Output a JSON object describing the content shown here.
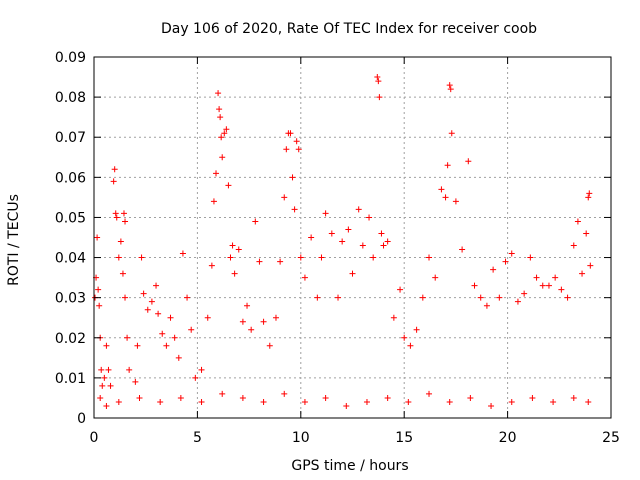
{
  "chart_data": {
    "type": "scatter",
    "title": "Day 106 of 2020, Rate Of TEC Index for receiver coob",
    "xlabel": "GPS time / hours",
    "ylabel": "ROTI / TECUs",
    "xlim": [
      0,
      25
    ],
    "ylim": [
      0,
      0.09
    ],
    "xticks": [
      0,
      5,
      10,
      15,
      20,
      25
    ],
    "xtick_labels": [
      "0",
      "5",
      "10",
      "15",
      "20",
      "25"
    ],
    "yticks": [
      0,
      0.01,
      0.02,
      0.03,
      0.04,
      0.05,
      0.06,
      0.07,
      0.08,
      0.09
    ],
    "ytick_labels": [
      "0",
      "0.01",
      "0.02",
      "0.03",
      "0.04",
      "0.05",
      "0.06",
      "0.07",
      "0.08",
      "0.09"
    ],
    "grid": true,
    "marker": "plus",
    "color": "#ff0000",
    "series": [
      {
        "points": [
          [
            0.05,
            0.03
          ],
          [
            0.1,
            0.035
          ],
          [
            0.15,
            0.045
          ],
          [
            0.2,
            0.032
          ],
          [
            0.25,
            0.028
          ],
          [
            0.3,
            0.02
          ],
          [
            0.35,
            0.012
          ],
          [
            0.4,
            0.008
          ],
          [
            0.5,
            0.01
          ],
          [
            0.6,
            0.018
          ],
          [
            0.7,
            0.012
          ],
          [
            0.8,
            0.008
          ],
          [
            0.95,
            0.059
          ],
          [
            1.0,
            0.062
          ],
          [
            1.05,
            0.051
          ],
          [
            1.1,
            0.05
          ],
          [
            1.2,
            0.04
          ],
          [
            1.3,
            0.044
          ],
          [
            1.4,
            0.036
          ],
          [
            1.5,
            0.03
          ],
          [
            1.45,
            0.051
          ],
          [
            1.5,
            0.049
          ],
          [
            1.6,
            0.02
          ],
          [
            1.7,
            0.012
          ],
          [
            2.0,
            0.009
          ],
          [
            2.1,
            0.018
          ],
          [
            2.3,
            0.04
          ],
          [
            2.4,
            0.031
          ],
          [
            2.6,
            0.027
          ],
          [
            2.8,
            0.029
          ],
          [
            3.0,
            0.033
          ],
          [
            3.1,
            0.026
          ],
          [
            3.3,
            0.021
          ],
          [
            3.5,
            0.018
          ],
          [
            3.7,
            0.025
          ],
          [
            3.9,
            0.02
          ],
          [
            4.1,
            0.015
          ],
          [
            4.3,
            0.041
          ],
          [
            4.5,
            0.03
          ],
          [
            4.7,
            0.022
          ],
          [
            4.9,
            0.01
          ],
          [
            5.2,
            0.012
          ],
          [
            5.5,
            0.025
          ],
          [
            5.7,
            0.038
          ],
          [
            5.8,
            0.054
          ],
          [
            5.9,
            0.061
          ],
          [
            6.0,
            0.081
          ],
          [
            6.05,
            0.077
          ],
          [
            6.1,
            0.075
          ],
          [
            6.15,
            0.07
          ],
          [
            6.2,
            0.065
          ],
          [
            6.3,
            0.071
          ],
          [
            6.4,
            0.072
          ],
          [
            6.5,
            0.058
          ],
          [
            6.6,
            0.04
          ],
          [
            6.7,
            0.043
          ],
          [
            6.8,
            0.036
          ],
          [
            7.0,
            0.042
          ],
          [
            7.2,
            0.024
          ],
          [
            7.4,
            0.028
          ],
          [
            7.6,
            0.022
          ],
          [
            7.8,
            0.049
          ],
          [
            8.0,
            0.039
          ],
          [
            8.2,
            0.024
          ],
          [
            8.5,
            0.018
          ],
          [
            8.8,
            0.025
          ],
          [
            9.0,
            0.039
          ],
          [
            9.2,
            0.055
          ],
          [
            9.3,
            0.067
          ],
          [
            9.4,
            0.071
          ],
          [
            9.5,
            0.071
          ],
          [
            9.6,
            0.06
          ],
          [
            9.7,
            0.052
          ],
          [
            9.8,
            0.069
          ],
          [
            9.9,
            0.067
          ],
          [
            10.0,
            0.04
          ],
          [
            10.2,
            0.035
          ],
          [
            10.5,
            0.045
          ],
          [
            10.8,
            0.03
          ],
          [
            11.0,
            0.04
          ],
          [
            11.2,
            0.051
          ],
          [
            11.5,
            0.046
          ],
          [
            11.8,
            0.03
          ],
          [
            12.0,
            0.044
          ],
          [
            12.3,
            0.047
          ],
          [
            12.5,
            0.036
          ],
          [
            12.8,
            0.052
          ],
          [
            13.0,
            0.043
          ],
          [
            13.3,
            0.05
          ],
          [
            13.5,
            0.04
          ],
          [
            13.7,
            0.085
          ],
          [
            13.75,
            0.084
          ],
          [
            13.8,
            0.08
          ],
          [
            13.9,
            0.046
          ],
          [
            14.0,
            0.043
          ],
          [
            14.2,
            0.044
          ],
          [
            14.5,
            0.025
          ],
          [
            14.8,
            0.032
          ],
          [
            15.0,
            0.02
          ],
          [
            15.3,
            0.018
          ],
          [
            15.6,
            0.022
          ],
          [
            15.9,
            0.03
          ],
          [
            16.2,
            0.04
          ],
          [
            16.5,
            0.035
          ],
          [
            16.8,
            0.057
          ],
          [
            17.0,
            0.055
          ],
          [
            17.1,
            0.063
          ],
          [
            17.2,
            0.083
          ],
          [
            17.25,
            0.082
          ],
          [
            17.3,
            0.071
          ],
          [
            17.5,
            0.054
          ],
          [
            17.8,
            0.042
          ],
          [
            18.1,
            0.064
          ],
          [
            18.4,
            0.033
          ],
          [
            18.7,
            0.03
          ],
          [
            19.0,
            0.028
          ],
          [
            19.3,
            0.037
          ],
          [
            19.6,
            0.03
          ],
          [
            19.9,
            0.039
          ],
          [
            20.2,
            0.041
          ],
          [
            20.5,
            0.029
          ],
          [
            20.8,
            0.031
          ],
          [
            21.1,
            0.04
          ],
          [
            21.4,
            0.035
          ],
          [
            21.7,
            0.033
          ],
          [
            22.0,
            0.033
          ],
          [
            22.3,
            0.035
          ],
          [
            22.6,
            0.032
          ],
          [
            22.9,
            0.03
          ],
          [
            23.2,
            0.043
          ],
          [
            23.4,
            0.049
          ],
          [
            23.6,
            0.036
          ],
          [
            23.8,
            0.046
          ],
          [
            23.9,
            0.055
          ],
          [
            23.95,
            0.056
          ],
          [
            24.0,
            0.038
          ],
          [
            0.3,
            0.005
          ],
          [
            0.6,
            0.003
          ],
          [
            1.2,
            0.004
          ],
          [
            2.2,
            0.005
          ],
          [
            3.2,
            0.004
          ],
          [
            4.2,
            0.005
          ],
          [
            5.2,
            0.004
          ],
          [
            6.2,
            0.006
          ],
          [
            7.2,
            0.005
          ],
          [
            8.2,
            0.004
          ],
          [
            9.2,
            0.006
          ],
          [
            10.2,
            0.004
          ],
          [
            11.2,
            0.005
          ],
          [
            12.2,
            0.003
          ],
          [
            13.2,
            0.004
          ],
          [
            14.2,
            0.005
          ],
          [
            15.2,
            0.004
          ],
          [
            16.2,
            0.006
          ],
          [
            17.2,
            0.004
          ],
          [
            18.2,
            0.005
          ],
          [
            19.2,
            0.003
          ],
          [
            20.2,
            0.004
          ],
          [
            21.2,
            0.005
          ],
          [
            22.2,
            0.004
          ],
          [
            23.2,
            0.005
          ],
          [
            23.9,
            0.004
          ]
        ]
      }
    ]
  }
}
